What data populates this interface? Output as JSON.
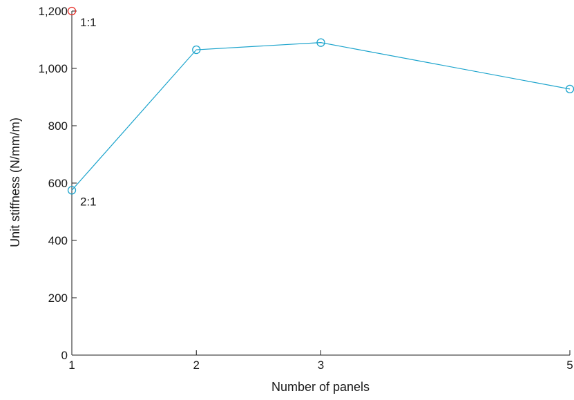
{
  "chart_data": {
    "type": "line",
    "xlabel": "Number of panels",
    "ylabel": "Unit stiffness (N/mm/m)",
    "xlim": [
      1,
      5
    ],
    "ylim": [
      0,
      1200
    ],
    "x_ticks": [
      {
        "value": 1,
        "label": "1"
      },
      {
        "value": 2,
        "label": "2"
      },
      {
        "value": 3,
        "label": "3"
      },
      {
        "value": 5,
        "label": "5"
      }
    ],
    "y_ticks": [
      {
        "value": 0,
        "label": "0"
      },
      {
        "value": 200,
        "label": "200"
      },
      {
        "value": 400,
        "label": "400"
      },
      {
        "value": 600,
        "label": "600"
      },
      {
        "value": 800,
        "label": "800"
      },
      {
        "value": 1000,
        "label": "1,000"
      },
      {
        "value": 1200,
        "label": "1,200"
      }
    ],
    "grid": false,
    "series": [
      {
        "color": "#1aa3cc",
        "marker": "circle",
        "line": true,
        "points": [
          {
            "x": 1,
            "y": 575
          },
          {
            "x": 2,
            "y": 1065
          },
          {
            "x": 3,
            "y": 1090
          },
          {
            "x": 5,
            "y": 928
          }
        ]
      },
      {
        "color": "#e8312b",
        "marker": "circle",
        "line": false,
        "points": [
          {
            "x": 1,
            "y": 1200
          }
        ]
      }
    ],
    "annotations": [
      {
        "text": "1:1",
        "x": 1,
        "y": 1200,
        "anchor": "below-right"
      },
      {
        "text": "2:1",
        "x": 1,
        "y": 575,
        "anchor": "below-right"
      }
    ]
  }
}
